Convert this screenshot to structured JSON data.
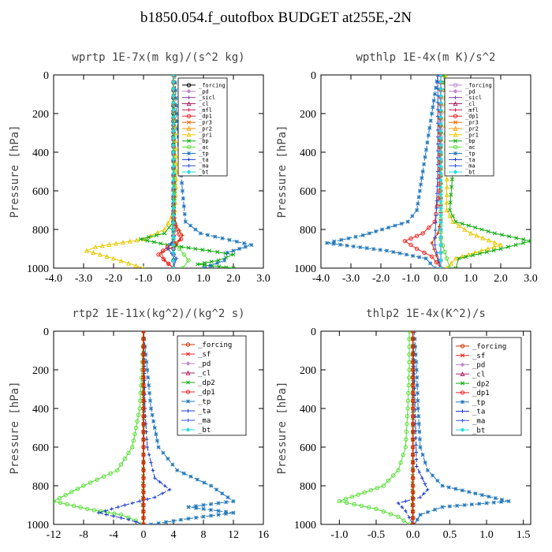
{
  "figure": {
    "title": "b1850.054.f_outofbox  BUDGET at255E,-2N"
  },
  "chart_data": [
    {
      "type": "line",
      "title": "wprtp  1E-7x(m kg)/(s^2 kg)",
      "ylabel": "Pressure [hPa]",
      "xlim": [
        -4.0,
        3.0
      ],
      "ylim": [
        1000,
        0
      ],
      "xticks": [
        "-4.0",
        "-3.0",
        "-2.0",
        "-1.0",
        "0.0",
        "1.0",
        "2.0",
        "3.0"
      ],
      "yticks": [
        "0",
        "200",
        "400",
        "600",
        "800",
        "1000"
      ],
      "grid": false,
      "legend_position": "top-right",
      "legend": [
        "_forcing",
        "_pd",
        "_sicl",
        "_cl",
        "_mfl",
        "_dp1",
        "_pr3",
        "_pr2",
        "_pr1",
        "_bp",
        "_ac",
        "_tp",
        "_ta",
        "_ma",
        "_bt"
      ],
      "series": [
        {
          "name": "_forcing",
          "color": "#000000",
          "marker": "circle",
          "x": [
            0,
            0,
            0,
            0,
            0,
            0,
            0,
            0
          ],
          "y": [
            0,
            200,
            400,
            600,
            800,
            900,
            960,
            1000
          ]
        },
        {
          "name": "_pd",
          "color": "#bb88cc",
          "marker": "diamond",
          "x": [
            0,
            0,
            0,
            0,
            0
          ],
          "y": [
            0,
            300,
            600,
            900,
            1000
          ]
        },
        {
          "name": "_pr1",
          "color": "#e8c800",
          "marker": "triangle",
          "x": [
            0.02,
            0.05,
            0.1,
            0.05,
            -0.3,
            -1.0,
            -2.6,
            -2.9,
            -2.0,
            -1.0
          ],
          "y": [
            0,
            300,
            500,
            700,
            800,
            850,
            890,
            910,
            950,
            1000
          ]
        },
        {
          "name": "_bp",
          "color": "#11aa11",
          "marker": "x",
          "x": [
            0,
            0,
            0.05,
            0,
            -0.3,
            -1.1,
            -0.2,
            1.2,
            2.0,
            1.5,
            0.8,
            2.0
          ],
          "y": [
            0,
            400,
            600,
            760,
            820,
            850,
            880,
            910,
            930,
            960,
            980,
            1000
          ]
        },
        {
          "name": "_ac",
          "color": "#55dd33",
          "marker": "circle",
          "x": [
            0,
            0,
            0,
            0.2,
            0.5,
            0.3
          ],
          "y": [
            0,
            600,
            850,
            900,
            960,
            1000
          ]
        },
        {
          "name": "_tp",
          "color": "#2277bb",
          "marker": "asterisk",
          "x": [
            0.05,
            0.1,
            0.2,
            0.3,
            0.4,
            0.9,
            2.6,
            1.8,
            1.7,
            1.0
          ],
          "y": [
            0,
            200,
            400,
            600,
            760,
            820,
            880,
            920,
            960,
            1000
          ]
        },
        {
          "name": "_mfl",
          "color": "#cc3300",
          "marker": "plus",
          "x": [
            0,
            0,
            0.1,
            0.3,
            0.1,
            -0.4,
            -0.3,
            0
          ],
          "y": [
            0,
            700,
            780,
            830,
            880,
            920,
            960,
            1000
          ]
        },
        {
          "name": "_dp1",
          "color": "#ee2222",
          "marker": "circle",
          "x": [
            0,
            0,
            0.1,
            0.25,
            -0.2,
            -0.5,
            0
          ],
          "y": [
            0,
            740,
            800,
            850,
            890,
            930,
            1000
          ]
        },
        {
          "name": "_ma",
          "color": "#3355dd",
          "marker": "plus",
          "x": [
            0,
            0,
            -0.2,
            0.1,
            0
          ],
          "y": [
            0,
            850,
            900,
            950,
            1000
          ]
        },
        {
          "name": "_bt",
          "color": "#22dddd",
          "marker": "diamond",
          "x": [
            0,
            0,
            0,
            0
          ],
          "y": [
            0,
            400,
            800,
            1000
          ]
        }
      ]
    },
    {
      "type": "line",
      "title": "wpthlp  1E-4x(m K)/s^2",
      "ylabel": "Pressure [hPa]",
      "xlim": [
        -4.0,
        3.0
      ],
      "ylim": [
        1000,
        0
      ],
      "xticks": [
        "-4.0",
        "-3.0",
        "-2.0",
        "-1.0",
        "0.0",
        "1.0",
        "2.0",
        "3.0"
      ],
      "yticks": [
        "0",
        "200",
        "400",
        "600",
        "800",
        "1000"
      ],
      "grid": false,
      "legend_position": "top-right",
      "legend": [
        "_forcing",
        "_pd",
        "_sicl",
        "_cl",
        "_mfl",
        "_dp1",
        "_pr3",
        "_pr2",
        "_pr1",
        "_bp",
        "_ac",
        "_tp",
        "_ta",
        "_ma",
        "_bt"
      ],
      "series": [
        {
          "name": "_forcing",
          "color": "#bb88cc",
          "marker": "circle",
          "x": [
            0,
            0,
            0,
            0,
            0,
            0
          ],
          "y": [
            0,
            200,
            400,
            600,
            800,
            1000
          ]
        },
        {
          "name": "_pr1",
          "color": "#e8c800",
          "marker": "triangle",
          "x": [
            0.15,
            0.15,
            0.2,
            0.2,
            0.4,
            1.0,
            2.0,
            0.5,
            0.2
          ],
          "y": [
            0,
            300,
            500,
            700,
            760,
            820,
            880,
            950,
            1000
          ]
        },
        {
          "name": "_bp",
          "color": "#11aa11",
          "marker": "x",
          "x": [
            0.1,
            0.2,
            0.4,
            0.3,
            0.5,
            1.8,
            3.0,
            2.0,
            0.6,
            0.5
          ],
          "y": [
            0,
            200,
            500,
            700,
            760,
            820,
            860,
            900,
            950,
            1000
          ]
        },
        {
          "name": "_ac",
          "color": "#55dd33",
          "marker": "circle",
          "x": [
            0,
            0,
            0,
            0.2,
            0.3
          ],
          "y": [
            0,
            600,
            850,
            950,
            1000
          ]
        },
        {
          "name": "_tp",
          "color": "#2277bb",
          "marker": "asterisk",
          "x": [
            -0.1,
            -0.3,
            -0.6,
            -0.8,
            -1.1,
            -2.6,
            -3.8,
            -1.8,
            -0.5,
            -0.2
          ],
          "y": [
            0,
            200,
            500,
            700,
            760,
            830,
            870,
            910,
            950,
            1000
          ]
        },
        {
          "name": "_dp1",
          "color": "#ee2222",
          "marker": "circle",
          "x": [
            0,
            -0.05,
            -0.2,
            -0.6,
            -1.2,
            -0.8,
            -0.3,
            0
          ],
          "y": [
            0,
            600,
            760,
            820,
            860,
            900,
            940,
            1000
          ]
        },
        {
          "name": "_mfl",
          "color": "#cc3300",
          "marker": "plus",
          "x": [
            0,
            0,
            -0.1,
            -0.3,
            0
          ],
          "y": [
            0,
            750,
            820,
            870,
            1000
          ]
        },
        {
          "name": "_ma",
          "color": "#3355dd",
          "marker": "plus",
          "x": [
            -0.1,
            -0.1,
            -0.2,
            0
          ],
          "y": [
            0,
            500,
            880,
            1000
          ]
        },
        {
          "name": "_bt",
          "color": "#22dddd",
          "marker": "diamond",
          "x": [
            0,
            0,
            0,
            0
          ],
          "y": [
            0,
            400,
            800,
            1000
          ]
        }
      ]
    },
    {
      "type": "line",
      "title": "rtp2  1E-11x(kg^2)/(kg^2 s)",
      "ylabel": "Pressure [hPa]",
      "xlim": [
        -12,
        16
      ],
      "ylim": [
        1000,
        0
      ],
      "xticks": [
        "-12",
        "-8",
        "-4",
        "0",
        "4",
        "8",
        "12",
        "16"
      ],
      "yticks": [
        "0",
        "200",
        "400",
        "600",
        "800",
        "1000"
      ],
      "grid": false,
      "legend_position": "top-right",
      "legend": [
        "_forcing",
        "_sf",
        "_pd",
        "_cl",
        "_dp2",
        "_dp1",
        "_tp",
        "_ta",
        "_ma",
        "_bt"
      ],
      "series": [
        {
          "name": "_dp2",
          "color": "#11aa11",
          "marker": "x",
          "x": [
            0,
            0,
            -0.1,
            0
          ],
          "y": [
            0,
            600,
            900,
            1000
          ]
        },
        {
          "name": "_dp1",
          "color": "#55dd33",
          "marker": "circle",
          "x": [
            0,
            -0.2,
            -0.5,
            -1.5,
            -3.5,
            -8.0,
            -12.0,
            -7.5,
            -3.0,
            -1.0,
            -0.3
          ],
          "y": [
            0,
            200,
            400,
            600,
            720,
            800,
            880,
            920,
            950,
            980,
            1000
          ]
        },
        {
          "name": "_tp",
          "color": "#2277bb",
          "marker": "asterisk",
          "x": [
            0,
            0.5,
            1.0,
            2.0,
            4.5,
            9.0,
            12.0,
            6.0,
            12.0,
            6.0,
            1.0
          ],
          "y": [
            0,
            200,
            400,
            600,
            720,
            800,
            880,
            910,
            940,
            970,
            1000
          ]
        },
        {
          "name": "_ta",
          "color": "#1a3acc",
          "marker": "plus",
          "x": [
            0,
            0.2,
            0.5,
            1.5,
            3.5,
            1.5,
            -2.5,
            -6.0,
            -2.0,
            0
          ],
          "y": [
            0,
            400,
            600,
            760,
            820,
            860,
            900,
            940,
            975,
            1000
          ]
        },
        {
          "name": "_sf",
          "color": "#ee2222",
          "marker": "x",
          "x": [
            0,
            0,
            0,
            0,
            0,
            0,
            0
          ],
          "y": [
            0,
            200,
            400,
            600,
            800,
            900,
            1000
          ]
        },
        {
          "name": "_forcing",
          "color": "#cc3300",
          "marker": "circle",
          "x": [
            0,
            0,
            0,
            0,
            0,
            0,
            0
          ],
          "y": [
            0,
            200,
            400,
            600,
            800,
            900,
            1000
          ]
        }
      ]
    },
    {
      "type": "line",
      "title": "thlp2  1E-4x(K^2)/s",
      "ylabel": "Pressure [hPa]",
      "xlim": [
        -1.25,
        1.6
      ],
      "ylim": [
        1000,
        0
      ],
      "xticks": [
        "-1.0",
        "-0.5",
        "0.0",
        "0.5",
        "1.0",
        "1.5"
      ],
      "yticks": [
        "0",
        "200",
        "400",
        "600",
        "800",
        "1000"
      ],
      "grid": false,
      "legend_position": "top-right",
      "legend": [
        "_forcing",
        "_sf",
        "_pd",
        "_cl",
        "_dp2",
        "_dp1",
        "_tp",
        "_ta",
        "_ma",
        "_bt"
      ],
      "series": [
        {
          "name": "_dp2",
          "color": "#11aa11",
          "marker": "x",
          "x": [
            0,
            0,
            -0.01,
            0
          ],
          "y": [
            0,
            600,
            900,
            1000
          ]
        },
        {
          "name": "_dp1",
          "color": "#55dd33",
          "marker": "circle",
          "x": [
            -0.05,
            -0.05,
            -0.07,
            -0.1,
            -0.2,
            -0.4,
            -1.0,
            -0.5,
            -0.2,
            -0.05
          ],
          "y": [
            0,
            200,
            400,
            600,
            720,
            800,
            880,
            920,
            960,
            1000
          ]
        },
        {
          "name": "_tp",
          "color": "#2277bb",
          "marker": "asterisk",
          "x": [
            0.02,
            0.05,
            0.07,
            0.1,
            0.2,
            0.4,
            1.3,
            0.4,
            0.1,
            0.02
          ],
          "y": [
            0,
            200,
            400,
            600,
            720,
            800,
            880,
            910,
            950,
            1000
          ]
        },
        {
          "name": "_ta",
          "color": "#1a3acc",
          "marker": "plus",
          "x": [
            0,
            0.05,
            0.2,
            0.1,
            -0.2,
            -0.1,
            0
          ],
          "y": [
            0,
            700,
            820,
            860,
            890,
            930,
            1000
          ]
        },
        {
          "name": "_sf",
          "color": "#ee2222",
          "marker": "x",
          "x": [
            0,
            0,
            0,
            0,
            0,
            0,
            0
          ],
          "y": [
            0,
            200,
            400,
            600,
            800,
            900,
            1000
          ]
        },
        {
          "name": "_forcing",
          "color": "#cc3300",
          "marker": "circle",
          "x": [
            0,
            0,
            0,
            0,
            0,
            0,
            0
          ],
          "y": [
            0,
            200,
            400,
            600,
            800,
            900,
            1000
          ]
        }
      ]
    }
  ],
  "legend_colors": {
    "_forcing": "#cc3300",
    "_pd": "#bb88cc",
    "_sicl": "#8844aa",
    "_cl": "#aa2266",
    "_mfl": "#cc2255",
    "_dp1": "#ee2222",
    "_pr3": "#ee6600",
    "_pr2": "#ff9900",
    "_pr1": "#e8c800",
    "_bp": "#11aa11",
    "_ac": "#55dd33",
    "_tp": "#2277bb",
    "_ta": "#1a3acc",
    "_ma": "#3355dd",
    "_bt": "#22dddd",
    "_sf": "#ee2222",
    "_dp2": "#11aa11"
  },
  "legend_colors_override": {
    "0": {
      "_forcing": "#000000"
    },
    "1": {
      "_forcing": "#bb88cc"
    }
  }
}
